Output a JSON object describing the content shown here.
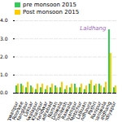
{
  "chart_data": {
    "type": "bar",
    "categories": [
      "Bhagwanpur",
      "Roorkee",
      "Manglaur",
      "Laksar",
      "Jwalapur",
      "Khanpur",
      "Haridwar",
      "Bahadrabad",
      "Narsan",
      "Doiwala",
      "Rishikesh",
      "Raiwala",
      "Shyampur",
      "Motichur",
      "Lalkuan",
      "Landhaura",
      "Pathri",
      "Ranipur",
      "Gumaniwala",
      "Laldhang",
      "Chidiyapur"
    ],
    "series": [
      {
        "name": "pre monsoon 2015",
        "color": "#33cc55",
        "values": [
          0.4,
          0.5,
          0.3,
          0.4,
          0.2,
          0.3,
          0.2,
          0.3,
          0.4,
          0.3,
          0.2,
          0.3,
          0.5,
          0.3,
          0.2,
          0.5,
          0.4,
          0.5,
          0.3,
          3.5,
          0.3
        ]
      },
      {
        "name": "Post monsoon 2015",
        "color": "#ffcc00",
        "values": [
          0.5,
          0.4,
          0.6,
          0.3,
          0.5,
          0.5,
          0.4,
          0.5,
          0.3,
          0.6,
          0.4,
          0.5,
          0.3,
          0.5,
          0.4,
          0.7,
          0.5,
          0.4,
          0.6,
          2.2,
          0.4
        ]
      }
    ],
    "ylim": [
      0,
      4
    ],
    "yticks": [
      0,
      1,
      2,
      3,
      4
    ],
    "grid": true,
    "legend": "upper left",
    "annotations": [
      {
        "text": "Laldhang",
        "x": "Laldhang",
        "y": 3.7,
        "color": "#9966bb"
      }
    ]
  }
}
